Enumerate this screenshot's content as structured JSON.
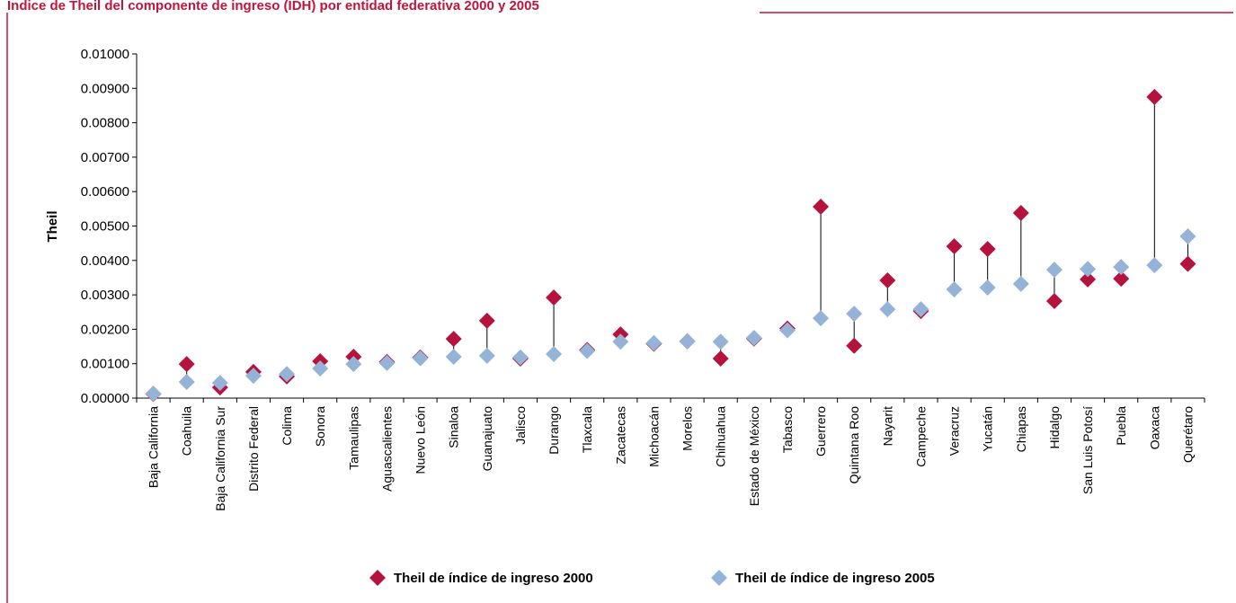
{
  "chart_data": {
    "type": "dot",
    "title": "Índice de Theil del componente de ingreso (IDH) por entidad federativa 2000 y 2005",
    "y_label": "Theil",
    "categories": [
      "Baja California",
      "Coahuila",
      "Baja California Sur",
      "Distrito Federal",
      "Colima",
      "Sonora",
      "Tamaulipas",
      "Aguascalientes",
      "Nuevo León",
      "Sinaloa",
      "Guanajuato",
      "Jalisco",
      "Durango",
      "Tlaxcala",
      "Zacatecas",
      "Michoacán",
      "Morelos",
      "Chihuahua",
      "Estado de México",
      "Tabasco",
      "Guerrero",
      "Quintana Roo",
      "Nayarit",
      "Campeche",
      "Veracruz",
      "Yucatán",
      "Chiapas",
      "Hidalgo",
      "San Luis Potosí",
      "Puebla",
      "Oaxaca",
      "Querétaro"
    ],
    "series": [
      {
        "name": "Theil de índice de ingreso 2000",
        "color": "#b5123e",
        "values": [
          0.00012,
          0.00099,
          0.00031,
          0.00076,
          0.00063,
          0.00107,
          0.0012,
          0.00105,
          0.00118,
          0.00172,
          0.00225,
          0.00115,
          0.00292,
          0.0014,
          0.00185,
          0.00158,
          0.00165,
          0.00115,
          0.00173,
          0.00202,
          0.00556,
          0.00152,
          0.00342,
          0.00253,
          0.00441,
          0.00433,
          0.00538,
          0.00282,
          0.00345,
          0.00347,
          0.00875,
          0.0039
        ]
      },
      {
        "name": "Theil de índice de ingreso 2005",
        "color": "#95b3d7",
        "values": [
          0.00013,
          0.00047,
          0.00044,
          0.00065,
          0.0007,
          0.00086,
          0.00099,
          0.00102,
          0.00116,
          0.0012,
          0.00123,
          0.00118,
          0.00128,
          0.00137,
          0.00164,
          0.0016,
          0.00165,
          0.00164,
          0.00175,
          0.00197,
          0.00232,
          0.00245,
          0.00258,
          0.00258,
          0.00316,
          0.00321,
          0.00332,
          0.00373,
          0.00375,
          0.00381,
          0.00386,
          0.0047
        ]
      }
    ],
    "ylim": [
      0,
      0.01
    ],
    "yticks": [
      {
        "value": 0,
        "label": "0.00000"
      },
      {
        "value": 0.001,
        "label": "0.00100"
      },
      {
        "value": 0.002,
        "label": "0.00200"
      },
      {
        "value": 0.003,
        "label": "0.00300"
      },
      {
        "value": 0.004,
        "label": "0.00400"
      },
      {
        "value": 0.005,
        "label": "0.00500"
      },
      {
        "value": 0.006,
        "label": "0.00600"
      },
      {
        "value": 0.007,
        "label": "0.00700"
      },
      {
        "value": 0.008,
        "label": "0.00800"
      },
      {
        "value": 0.009,
        "label": "0.00900"
      },
      {
        "value": 0.01,
        "label": "0.01000"
      }
    ],
    "legend": "bottom"
  }
}
